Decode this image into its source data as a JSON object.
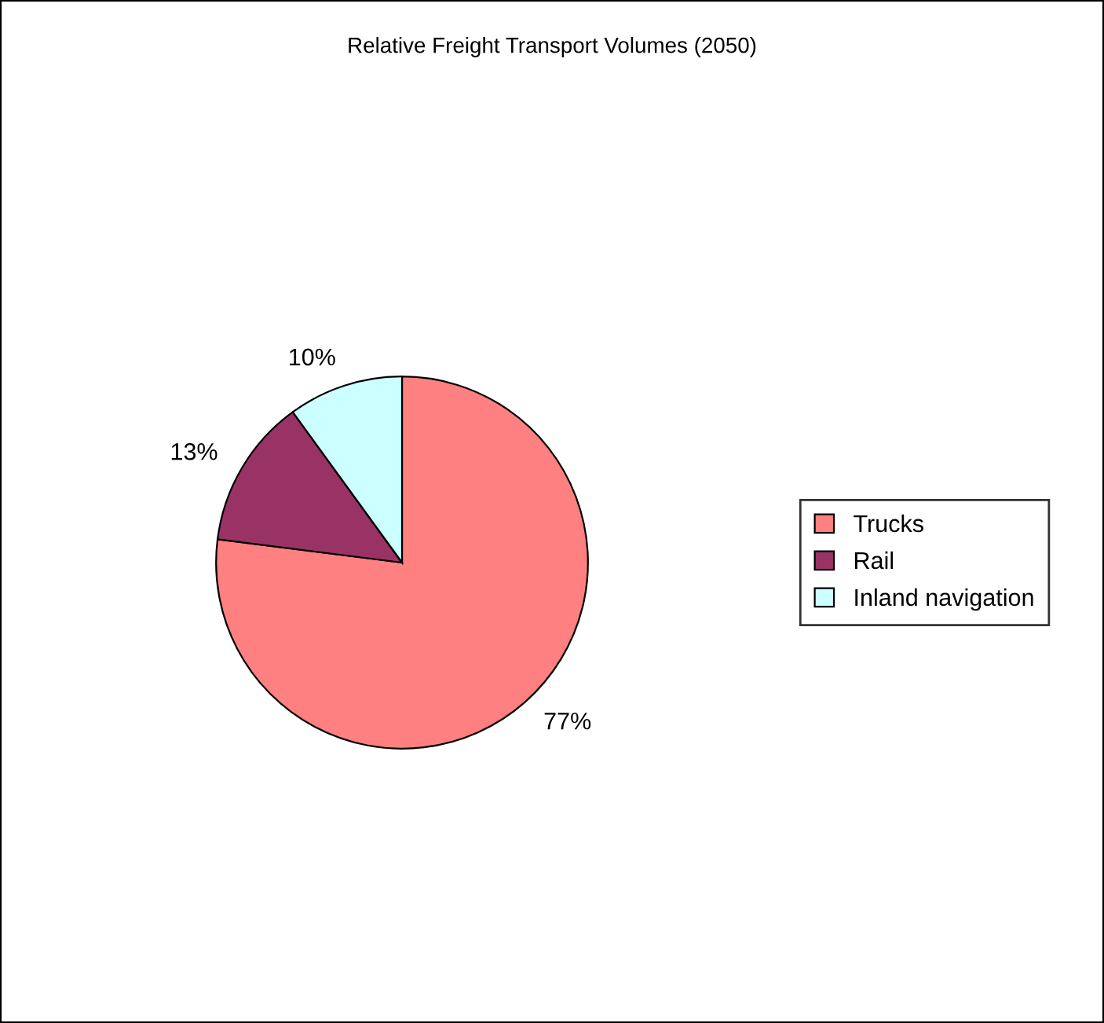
{
  "chart_data": {
    "type": "pie",
    "title": "Relative Freight Transport Volumes (2050)",
    "categories": [
      "Trucks",
      "Rail",
      "Inland navigation"
    ],
    "values": [
      77,
      13,
      10
    ],
    "value_labels": [
      "77%",
      "13%",
      "10%"
    ],
    "colors": [
      "#ff8080",
      "#993366",
      "#ccffff"
    ],
    "legend": "right"
  }
}
